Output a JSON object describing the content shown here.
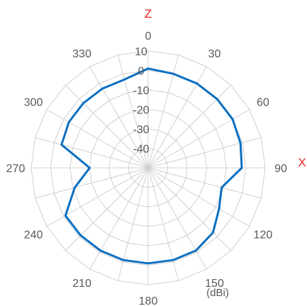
{
  "chart_data": {
    "type": "radar",
    "axis_names": {
      "top": "Z",
      "right": "X"
    },
    "unit": "(dBi)",
    "angles": [
      0,
      30,
      60,
      90,
      120,
      150,
      180,
      210,
      240,
      270,
      300,
      330
    ],
    "angle_labels": [
      "0",
      "30",
      "60",
      "90",
      "120",
      "150",
      "180",
      "210",
      "240",
      "270",
      "300",
      "330"
    ],
    "radial_ticks": [
      10,
      0,
      -10,
      -20,
      -30,
      -40
    ],
    "radial_tick_labels": [
      "10",
      "0",
      "-10",
      "-20",
      "-30",
      "-40"
    ],
    "rlim": [
      -50,
      10
    ],
    "series": [
      {
        "color": "#0b6fc2",
        "angles": [
          0,
          15,
          30,
          45,
          60,
          75,
          90,
          105,
          120,
          135,
          150,
          165,
          180,
          195,
          210,
          225,
          240,
          255,
          270,
          285,
          300,
          315,
          330,
          345
        ],
        "values": [
          1,
          0,
          0,
          0,
          0,
          -1,
          -2,
          -11,
          -8,
          -3,
          -1,
          -1,
          -1,
          -1,
          -1,
          -1,
          -1,
          -11,
          -20,
          -4,
          -3,
          -3,
          -3,
          -3
        ]
      }
    ],
    "grid": true
  }
}
